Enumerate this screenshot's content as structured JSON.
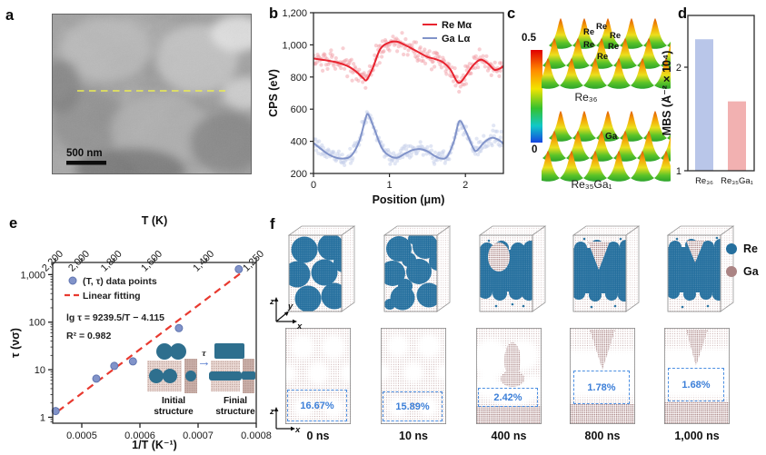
{
  "panels": {
    "a": {
      "label": "a",
      "scale_bar_label": "500 nm",
      "marker_line_color": "#ecec52"
    },
    "b": {
      "label": "b"
    },
    "c": {
      "label": "c",
      "colorbar_max": "0.5",
      "colorbar_min": "0",
      "re_labels": [
        "Re",
        "Re",
        "Re",
        "Re",
        "Re",
        "Re"
      ],
      "ga_label": "Ga",
      "surface1_title": "Re₃₆",
      "surface2_title": "Re₃₅Ga₁"
    },
    "d": {
      "label": "d"
    },
    "e": {
      "label": "e",
      "inset": {
        "tau": "τ",
        "arrow": "→",
        "initial_caption": "Initial structure",
        "final_caption": "Finial structure"
      }
    },
    "f": {
      "label": "f",
      "columns": [
        {
          "time": "0 ns",
          "pct": "16.67%"
        },
        {
          "time": "10 ns",
          "pct": "15.89%"
        },
        {
          "time": "400 ns",
          "pct": "2.42%"
        },
        {
          "time": "800 ns",
          "pct": "1.78%"
        },
        {
          "time": "1,000 ns",
          "pct": "1.68%"
        }
      ],
      "legend": [
        {
          "label": "Re",
          "color": "#246f9e"
        },
        {
          "label": "Ga",
          "color": "#ab8484"
        }
      ],
      "axes3d": {
        "z": "z",
        "y": "y",
        "x": "x"
      },
      "axes2d": {
        "z": "z",
        "x": "x"
      },
      "percent_box_color": "#4b8fe2"
    }
  },
  "chart_data": [
    {
      "type": "line",
      "panel": "b",
      "xlabel": "Position (μm)",
      "ylabel": "CPS (eV)",
      "xlim": [
        0,
        2.5
      ],
      "xticks": [
        0,
        1,
        2
      ],
      "xtick_labels": [
        "0",
        "1",
        "2"
      ],
      "ylim": [
        200,
        1200
      ],
      "yticks": [
        200,
        400,
        600,
        800,
        1000,
        1200
      ],
      "ytick_labels": [
        "200",
        "400",
        "600",
        "800",
        "1,000",
        "1,200"
      ],
      "grid": false,
      "legend_position": "top-right",
      "scatter_sigma": [
        30,
        24
      ],
      "series": [
        {
          "name": "Re Mα",
          "color": "#e8232f",
          "scatter_color": "#f2a0a8",
          "points": [
            [
              0,
              915
            ],
            [
              0.15,
              905
            ],
            [
              0.3,
              892
            ],
            [
              0.45,
              868
            ],
            [
              0.55,
              838
            ],
            [
              0.65,
              795
            ],
            [
              0.7,
              782
            ],
            [
              0.78,
              855
            ],
            [
              0.88,
              975
            ],
            [
              1.0,
              1015
            ],
            [
              1.1,
              1020
            ],
            [
              1.2,
              1000
            ],
            [
              1.3,
              975
            ],
            [
              1.4,
              950
            ],
            [
              1.5,
              925
            ],
            [
              1.6,
              912
            ],
            [
              1.7,
              893
            ],
            [
              1.8,
              848
            ],
            [
              1.88,
              778
            ],
            [
              1.93,
              765
            ],
            [
              2.0,
              805
            ],
            [
              2.1,
              872
            ],
            [
              2.2,
              908
            ],
            [
              2.3,
              882
            ],
            [
              2.38,
              845
            ],
            [
              2.45,
              852
            ],
            [
              2.5,
              868
            ]
          ]
        },
        {
          "name": "Ga Lα",
          "color": "#8193c9",
          "scatter_color": "#c4cde9",
          "points": [
            [
              0,
              390
            ],
            [
              0.1,
              352
            ],
            [
              0.2,
              318
            ],
            [
              0.3,
              298
            ],
            [
              0.4,
              293
            ],
            [
              0.5,
              312
            ],
            [
              0.6,
              398
            ],
            [
              0.68,
              532
            ],
            [
              0.72,
              568
            ],
            [
              0.8,
              478
            ],
            [
              0.9,
              358
            ],
            [
              1.0,
              310
            ],
            [
              1.1,
              298
            ],
            [
              1.2,
              322
            ],
            [
              1.3,
              345
            ],
            [
              1.4,
              352
            ],
            [
              1.5,
              338
            ],
            [
              1.6,
              308
            ],
            [
              1.68,
              293
            ],
            [
              1.76,
              305
            ],
            [
              1.85,
              402
            ],
            [
              1.92,
              525
            ],
            [
              2.0,
              468
            ],
            [
              2.1,
              360
            ],
            [
              2.15,
              342
            ],
            [
              2.25,
              395
            ],
            [
              2.35,
              422
            ],
            [
              2.45,
              405
            ],
            [
              2.5,
              385
            ]
          ]
        }
      ]
    },
    {
      "type": "bar",
      "panel": "d",
      "ylabel": "MBS (Å⁻² × 10⁴)",
      "categories": [
        "Re₃₆",
        "Re₃₅Ga₁"
      ],
      "values": [
        2.27,
        1.67
      ],
      "bar_colors": [
        "#b9c6e9",
        "#f2b1b1"
      ],
      "ylim": [
        1,
        2.5
      ],
      "yticks": [
        1,
        2
      ],
      "ytick_labels": [
        "1",
        "2"
      ],
      "grid": false
    },
    {
      "type": "scatter",
      "panel": "e",
      "xlabel": "1/T (K⁻¹)",
      "ylabel": "τ (νσ)",
      "top_axis_label": "T (K)",
      "xlim": [
        0.00045,
        0.0008
      ],
      "xticks": [
        0.0005,
        0.0006,
        0.0007,
        0.0008
      ],
      "xtick_labels": [
        "0.0005",
        "0.0006",
        "0.0007",
        "0.0008"
      ],
      "ylog": true,
      "ylim": [
        0.75,
        1800
      ],
      "yticks": [
        1,
        10,
        100,
        1000
      ],
      "ytick_labels": [
        "1",
        "10",
        "100",
        "1,000"
      ],
      "top_ticks_T": [
        2200,
        2000,
        1800,
        1600,
        1400,
        1250
      ],
      "top_tick_labels": [
        "2,200",
        "2,000",
        "1,800",
        "1,600",
        "1,400",
        "1,250"
      ],
      "points": [
        [
          0.000455,
          1.35
        ],
        [
          0.000525,
          6.5
        ],
        [
          0.000556,
          12
        ],
        [
          0.000588,
          15
        ],
        [
          0.000667,
          75
        ],
        [
          0.00077,
          1300
        ]
      ],
      "point_color": "#8193c9",
      "point_edge": "#5f74b0",
      "fit": {
        "label": "Linear fitting",
        "color": "#e8392f",
        "slope": 9239.5,
        "intercept": -4.115,
        "x_range": [
          0.000459,
          0.000772
        ]
      },
      "legend_point_label": "(T, τ) data points",
      "equation": "lg τ = 9239.5/T − 4.115",
      "r_squared": "R² = 0.982",
      "grid": false,
      "legend_position": "top-left"
    }
  ]
}
